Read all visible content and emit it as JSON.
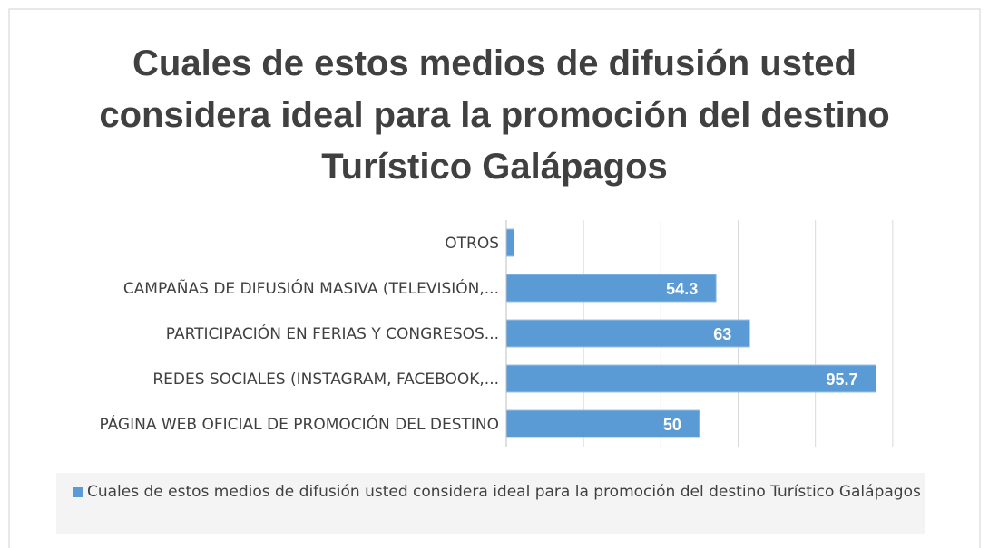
{
  "chart_data": {
    "type": "hbar",
    "title": "Cuales de estos medios de difusión usted considera ideal para la promoción del destino Turístico Galápagos",
    "categories": [
      "OTROS",
      "CAMPAÑAS DE DIFUSIÓN MASIVA (TELEVISIÓN,...",
      "PARTICIPACIÓN EN FERIAS Y CONGRESOS...",
      "REDES SOCIALES (INSTAGRAM, FACEBOOK,...",
      "PÁGINA WEB OFICIAL DE PROMOCIÓN DEL DESTINO"
    ],
    "series": [
      {
        "name": "Cuales de estos medios de difusión usted considera ideal para la promoción del destino Turístico Galápagos",
        "color": "#5b9bd5",
        "values": [
          2,
          54.3,
          63,
          95.7,
          50
        ],
        "value_labels": [
          null,
          "54.3",
          "63",
          "95.7",
          "50"
        ]
      }
    ],
    "xlim": [
      0,
      120
    ],
    "xticks": [
      0,
      20,
      40,
      60,
      80,
      100
    ],
    "grid": true,
    "legend": "bottom"
  }
}
